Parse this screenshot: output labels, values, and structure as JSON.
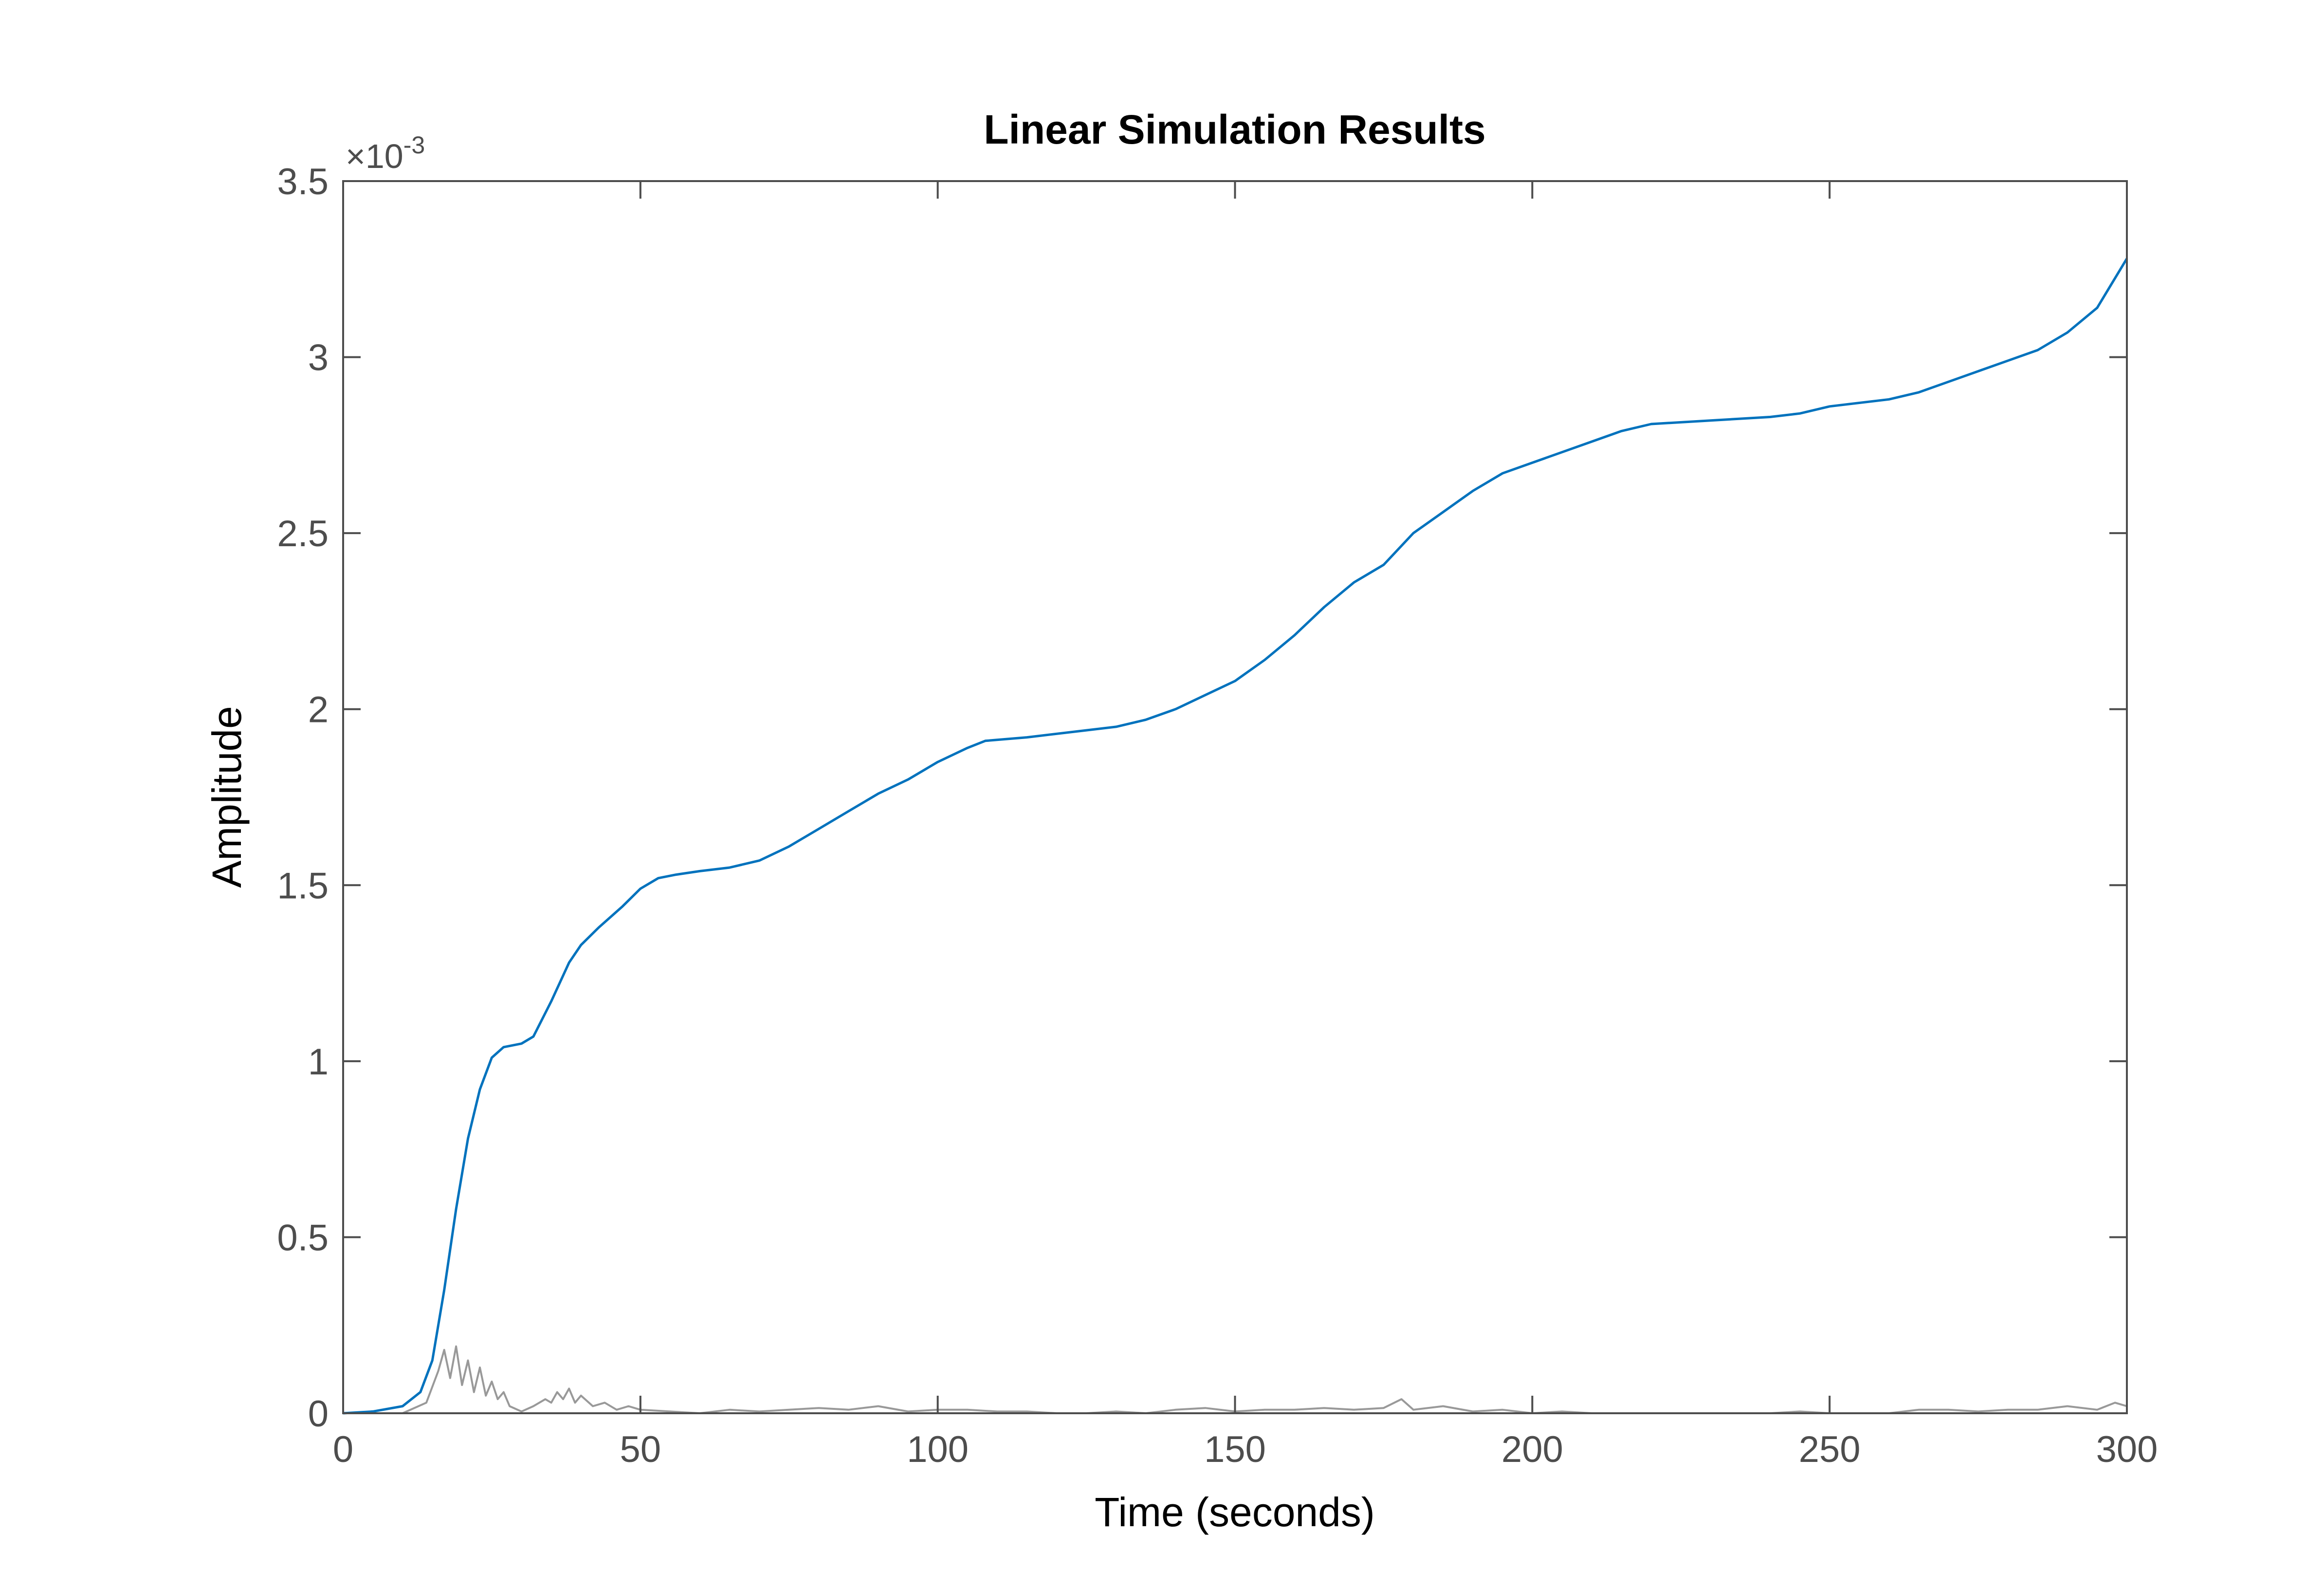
{
  "chart_data": {
    "type": "line",
    "title": "Linear Simulation Results",
    "xlabel": "Time (seconds)",
    "ylabel": "Amplitude",
    "xlim": [
      0,
      300
    ],
    "ylim": [
      0,
      0.0035
    ],
    "y_exponent": {
      "times": "×10",
      "power": "-3"
    },
    "x_ticks": [
      0,
      50,
      100,
      150,
      200,
      250,
      300
    ],
    "x_tick_labels": [
      "0",
      "50",
      "100",
      "150",
      "200",
      "250",
      "300"
    ],
    "y_ticks": [
      0,
      0.0005,
      0.001,
      0.0015,
      0.002,
      0.0025,
      0.003,
      0.0035
    ],
    "y_tick_labels": [
      "0",
      "0.5",
      "1",
      "1.5",
      "2",
      "2.5",
      "3",
      "3.5"
    ],
    "grid": false,
    "colors": {
      "response": "#0072bd",
      "input": "#999999",
      "axes": "#4d4d4d"
    },
    "series": [
      {
        "id": "response",
        "x": [
          0,
          5,
          10,
          13,
          15,
          17,
          19,
          21,
          23,
          25,
          27,
          30,
          32,
          35,
          38,
          40,
          43,
          47,
          50,
          53,
          56,
          60,
          65,
          70,
          75,
          80,
          85,
          90,
          95,
          100,
          105,
          108,
          115,
          125,
          130,
          135,
          140,
          145,
          150,
          155,
          160,
          165,
          170,
          175,
          180,
          185,
          190,
          195,
          200,
          205,
          210,
          215,
          220,
          230,
          240,
          245,
          250,
          260,
          265,
          270,
          275,
          280,
          285,
          290,
          295,
          300
        ],
        "y": [
          0,
          5e-06,
          2e-05,
          6e-05,
          0.00015,
          0.00035,
          0.00058,
          0.00078,
          0.00092,
          0.00101,
          0.00104,
          0.00105,
          0.00107,
          0.00117,
          0.00128,
          0.00133,
          0.00138,
          0.00144,
          0.00149,
          0.00152,
          0.00153,
          0.00154,
          0.00155,
          0.00157,
          0.00161,
          0.00166,
          0.00171,
          0.00176,
          0.0018,
          0.00185,
          0.00189,
          0.00191,
          0.00192,
          0.00194,
          0.00195,
          0.00197,
          0.002,
          0.00204,
          0.00208,
          0.00214,
          0.00221,
          0.00229,
          0.00236,
          0.00241,
          0.0025,
          0.00256,
          0.00262,
          0.00267,
          0.0027,
          0.00273,
          0.00276,
          0.00279,
          0.00281,
          0.00282,
          0.00283,
          0.00284,
          0.00286,
          0.00288,
          0.0029,
          0.00293,
          0.00296,
          0.00299,
          0.00302,
          0.00307,
          0.00314,
          0.00328
        ]
      },
      {
        "id": "input",
        "x": [
          0,
          10,
          14,
          16,
          17,
          18,
          19,
          20,
          21,
          22,
          23,
          24,
          25,
          26,
          27,
          28,
          30,
          32,
          34,
          35,
          36,
          37,
          38,
          39,
          40,
          42,
          44,
          46,
          48,
          50,
          55,
          60,
          65,
          70,
          75,
          80,
          85,
          90,
          95,
          100,
          105,
          110,
          115,
          120,
          125,
          130,
          135,
          140,
          145,
          150,
          155,
          160,
          165,
          170,
          175,
          178,
          180,
          185,
          190,
          195,
          200,
          205,
          210,
          215,
          220,
          230,
          240,
          245,
          250,
          255,
          260,
          265,
          270,
          275,
          280,
          285,
          290,
          295,
          298,
          300
        ],
        "y": [
          0,
          0,
          3e-05,
          0.00012,
          0.00018,
          0.0001,
          0.00019,
          8e-05,
          0.00015,
          6e-05,
          0.00013,
          5e-05,
          9e-05,
          4e-05,
          6e-05,
          2e-05,
          5e-06,
          2e-05,
          4e-05,
          3e-05,
          6e-05,
          4e-05,
          7e-05,
          3e-05,
          5e-05,
          2e-05,
          3e-05,
          1e-05,
          2e-05,
          1e-05,
          5e-06,
          0,
          1e-05,
          5e-06,
          1e-05,
          1.5e-05,
          1e-05,
          2e-05,
          5e-06,
          1e-05,
          1e-05,
          5e-06,
          5e-06,
          0,
          0,
          5e-06,
          0,
          1e-05,
          1.5e-05,
          5e-06,
          1e-05,
          1e-05,
          1.5e-05,
          1e-05,
          1.5e-05,
          4e-05,
          1e-05,
          2e-05,
          5e-06,
          1e-05,
          0,
          5e-06,
          0,
          0,
          0,
          0,
          0,
          5e-06,
          0,
          0,
          0,
          1e-05,
          1e-05,
          5e-06,
          1e-05,
          1e-05,
          2e-05,
          1e-05,
          3e-05,
          2e-05
        ]
      }
    ]
  }
}
